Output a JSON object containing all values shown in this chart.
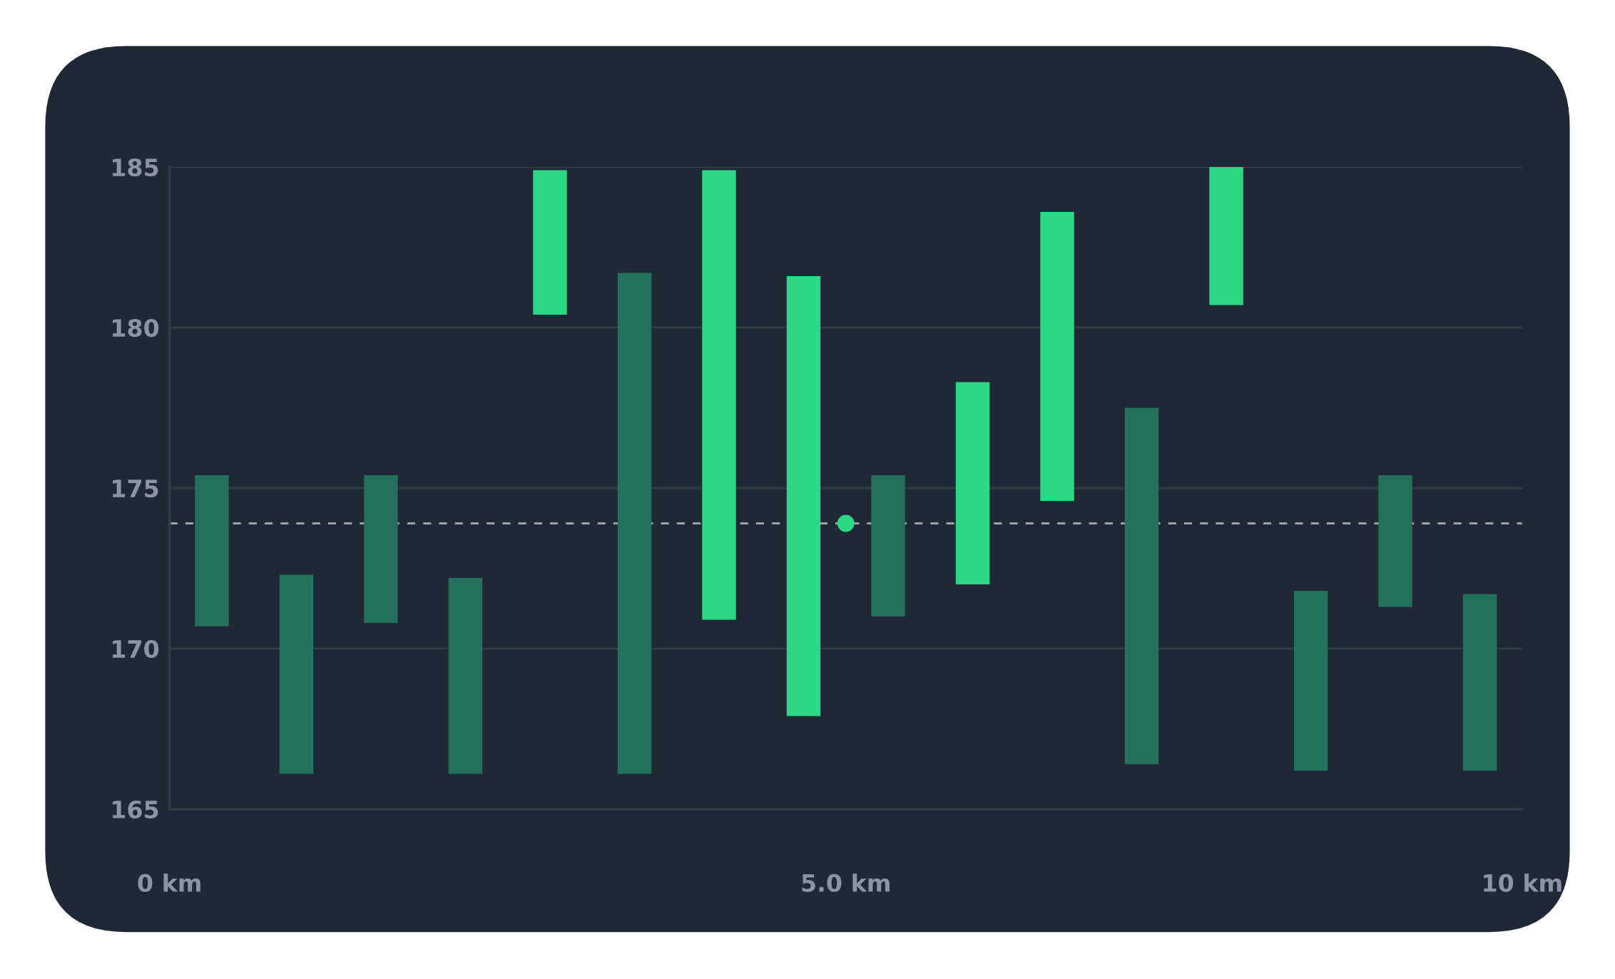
{
  "chart_data": {
    "type": "bar",
    "series": [
      {
        "x": [
          0.3125,
          0.9375,
          1.5625,
          2.1875,
          2.8125,
          3.4375,
          4.0625,
          4.6875,
          5.3125,
          5.9375,
          6.5625,
          7.1875,
          7.8125,
          8.4375,
          9.0625,
          9.6875
        ],
        "base": [
          170.7,
          166.1,
          170.8,
          166.1,
          180.4,
          166.1,
          170.9,
          167.9,
          171.0,
          172.0,
          174.6,
          166.4,
          180.7,
          166.2,
          171.3,
          166.2
        ],
        "values": [
          4.7,
          6.2,
          4.6,
          6.1,
          4.5,
          15.6,
          14.0,
          13.7,
          4.4,
          6.3,
          9.0,
          11.1,
          4.3,
          5.6,
          4.1,
          5.5
        ],
        "colors": [
          "#25705a",
          "#25705a",
          "#25705a",
          "#25705a",
          "#2dd884",
          "#25705a",
          "#2dd884",
          "#2dd884",
          "#25705a",
          "#2dd884",
          "#2dd884",
          "#25705a",
          "#2dd884",
          "#25705a",
          "#25705a",
          "#25705a"
        ]
      },
      {
        "type": "scatter",
        "x": [
          5.0
        ],
        "values": [
          173.9
        ],
        "color": "#2dd884"
      }
    ],
    "xlim": [
      0,
      10
    ],
    "xticks": [
      {
        "value": 0,
        "label": "0 km"
      },
      {
        "value": 5,
        "label": "5.0 km"
      },
      {
        "value": 10,
        "label": "10 km"
      }
    ],
    "ylim": [
      165,
      185
    ],
    "yticks": [
      165,
      170,
      175,
      180,
      185
    ],
    "grid": "y",
    "ref_lines": [
      {
        "axis": "y",
        "value": 173.9,
        "color": "#9aa3ab",
        "line_style": "dashed"
      }
    ]
  }
}
